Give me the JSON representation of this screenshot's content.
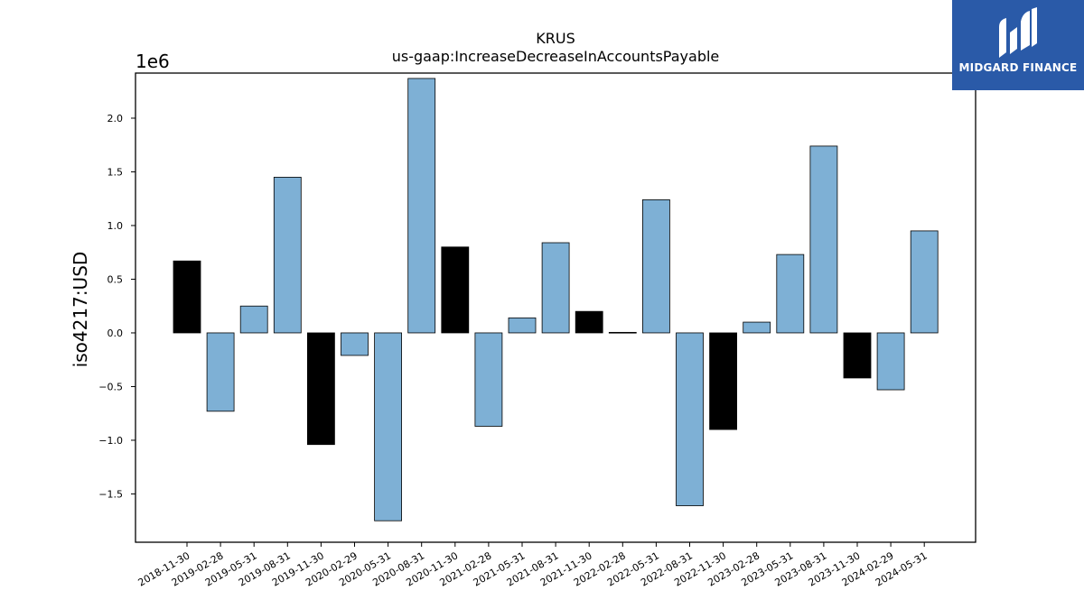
{
  "chart_data": {
    "type": "bar",
    "title": "KRUS",
    "subtitle": "us-gaap:IncreaseDecreaseInAccountsPayable",
    "ylabel": "iso4217:USD",
    "xlabel": "",
    "offset_label": "1e6",
    "ylim": [
      -1950000,
      2420000
    ],
    "yticks": [
      -1500000,
      -1000000,
      -500000,
      0,
      500000,
      1000000,
      1500000,
      2000000
    ],
    "ytick_labels": [
      "−1.5",
      "−1.0",
      "−0.5",
      "0.0",
      "0.5",
      "1.0",
      "1.5",
      "2.0"
    ],
    "grid": false,
    "categories": [
      "2018-11-30",
      "2019-02-28",
      "2019-05-31",
      "2019-08-31",
      "2019-11-30",
      "2020-02-29",
      "2020-05-31",
      "2020-08-31",
      "2020-11-30",
      "2021-02-28",
      "2021-05-31",
      "2021-08-31",
      "2021-11-30",
      "2022-02-28",
      "2022-05-31",
      "2022-08-31",
      "2022-11-30",
      "2023-02-28",
      "2023-05-31",
      "2023-08-31",
      "2023-11-30",
      "2024-02-29",
      "2024-05-31"
    ],
    "values": [
      670000,
      -730000,
      250000,
      1450000,
      -1040000,
      -210000,
      -1750000,
      2370000,
      800000,
      -870000,
      140000,
      840000,
      200000,
      5000,
      1240000,
      -1610000,
      -900000,
      100000,
      730000,
      1740000,
      -420000,
      -530000,
      950000
    ],
    "bar_colors": [
      "#000000",
      "#7eb0d5",
      "#7eb0d5",
      "#7eb0d5",
      "#000000",
      "#7eb0d5",
      "#7eb0d5",
      "#7eb0d5",
      "#000000",
      "#7eb0d5",
      "#7eb0d5",
      "#7eb0d5",
      "#000000",
      "#7eb0d5",
      "#7eb0d5",
      "#7eb0d5",
      "#000000",
      "#7eb0d5",
      "#7eb0d5",
      "#7eb0d5",
      "#000000",
      "#7eb0d5",
      "#7eb0d5"
    ]
  },
  "logo": {
    "text": "MIDGARD FINANCE",
    "background": "#2a5aa8"
  }
}
